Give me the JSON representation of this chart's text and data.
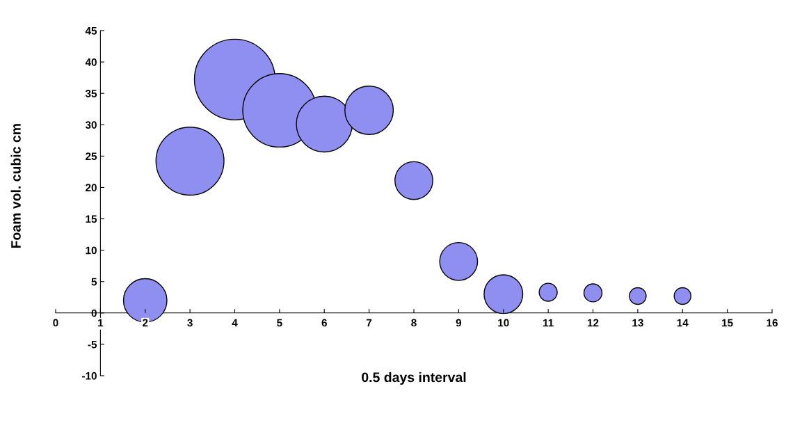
{
  "chart_data": {
    "type": "bubble",
    "xlabel": "0.5 days interval",
    "ylabel": "Foam vol. cubic cm",
    "x": [
      2,
      3,
      4,
      5,
      6,
      7,
      8,
      9,
      10,
      11,
      12,
      13,
      14
    ],
    "values": [
      2,
      24.2,
      37.2,
      32.3,
      30.1,
      32.3,
      21.1,
      8.2,
      3.0,
      3.3,
      3.2,
      2.7,
      2.7
    ],
    "sizes": [
      0.29,
      0.71,
      1,
      0.83,
      0.48,
      0.36,
      0.22,
      0.22,
      0.23,
      0.05,
      0.05,
      0.043,
      0.043
    ],
    "color": "#8f8ff2",
    "xlim": [
      0,
      16
    ],
    "xticks": [
      0,
      1,
      2,
      3,
      4,
      5,
      6,
      7,
      8,
      9,
      10,
      11,
      12,
      13,
      14,
      15,
      16
    ],
    "ylim": [
      -10,
      45
    ],
    "yticks": [
      -10,
      -5,
      0,
      5,
      10,
      15,
      20,
      25,
      30,
      35,
      40,
      45
    ],
    "grid": false,
    "legend": false
  }
}
